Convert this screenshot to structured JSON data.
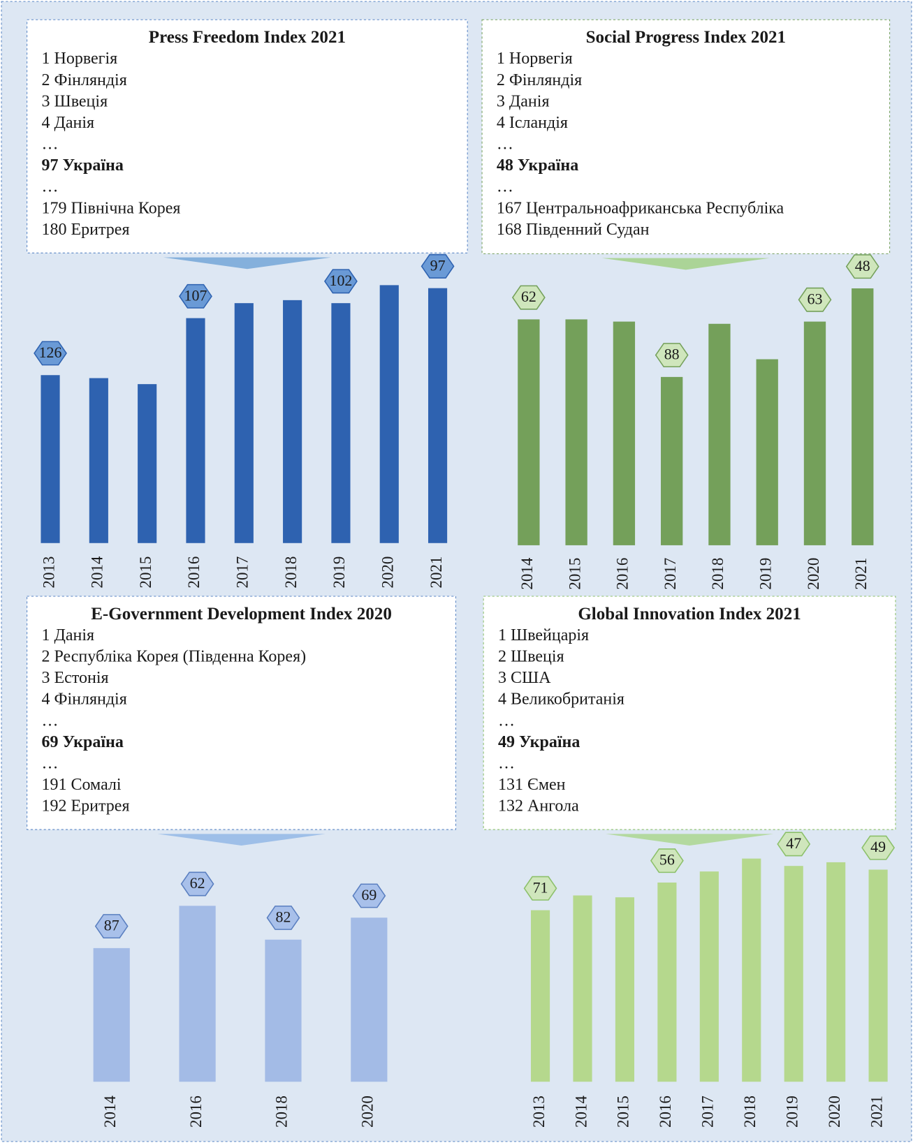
{
  "chart_data": [
    {
      "type": "bar",
      "title": "Press Freedom Index 2021",
      "ranking": [
        {
          "text": "1 Норвегія"
        },
        {
          "text": "2 Фінляндія"
        },
        {
          "text": "3 Швеція"
        },
        {
          "text": "4 Данія"
        },
        {
          "text": "…"
        },
        {
          "text": "97 Україна",
          "bold": true
        },
        {
          "text": "…"
        },
        {
          "text": "179 Північна Корея"
        },
        {
          "text": "180 Еритрея"
        }
      ],
      "categories": [
        "2013",
        "2014",
        "2015",
        "2016",
        "2017",
        "2018",
        "2019",
        "2020",
        "2021"
      ],
      "values": [
        126,
        127,
        129,
        107,
        102,
        101,
        102,
        96,
        97
      ],
      "value_labels": [
        "126",
        null,
        null,
        "107",
        null,
        null,
        "102",
        null,
        "97"
      ],
      "color": "#2e62b0",
      "ylim": [
        182,
        86
      ]
    },
    {
      "type": "bar",
      "title": "Social Progress Index 2021",
      "ranking": [
        {
          "text": "1  Норвегія"
        },
        {
          "text": "2 Фінляндія"
        },
        {
          "text": "3 Данія"
        },
        {
          "text": "4 Ісландія"
        },
        {
          "text": "…"
        },
        {
          "text": "48 Україна",
          "bold": true
        },
        {
          "text": "…"
        },
        {
          "text": "167 Центральноафриканська Республіка"
        },
        {
          "text": "168 Південний Судан"
        }
      ],
      "categories": [
        "2014",
        "2015",
        "2016",
        "2017",
        "2018",
        "2019",
        "2020",
        "2021"
      ],
      "values": [
        62,
        62,
        63,
        88,
        64,
        80,
        63,
        48
      ],
      "value_labels": [
        "62",
        null,
        null,
        "88",
        null,
        null,
        "63",
        "48"
      ],
      "color": "#74a05a",
      "ylim": [
        164,
        33
      ]
    },
    {
      "type": "bar",
      "title": "E-Government Development Index 2020",
      "ranking": [
        {
          "text": "1 Данія"
        },
        {
          "text": "2 Республіка Корея (Південна Корея)"
        },
        {
          "text": "3 Естонія"
        },
        {
          "text": "4 Фінляндія"
        },
        {
          "text": "…"
        },
        {
          "text": "69 Україна",
          "bold": true
        },
        {
          "text": "…"
        },
        {
          "text": "191 Сомалі"
        },
        {
          "text": "192 Еритрея"
        }
      ],
      "categories": [
        "2014",
        "2016",
        "2018",
        "2020"
      ],
      "values": [
        87,
        62,
        82,
        69
      ],
      "value_labels": [
        "87",
        "62",
        "82",
        "69"
      ],
      "color": "#a3bbe6",
      "ylim": [
        166,
        35
      ]
    },
    {
      "type": "bar",
      "title": "Global Innovation Index 2021",
      "ranking": [
        {
          "text": "1 Швейцарія"
        },
        {
          "text": "2 Швеція"
        },
        {
          "text": "3 США"
        },
        {
          "text": "4 Великобританія"
        },
        {
          "text": "…"
        },
        {
          "text": "49 Україна",
          "bold": true
        },
        {
          "text": "…"
        },
        {
          "text": "131  Ємен"
        },
        {
          "text": "132  Ангола"
        }
      ],
      "categories": [
        "2013",
        "2014",
        "2015",
        "2016",
        "2017",
        "2018",
        "2019",
        "2020",
        "2021"
      ],
      "values": [
        71,
        63,
        64,
        56,
        50,
        43,
        47,
        45,
        49
      ],
      "value_labels": [
        "71",
        null,
        null,
        "56",
        null,
        null,
        "47",
        null,
        "49"
      ],
      "color": "#b5d88d",
      "ylim": [
        164,
        32
      ]
    }
  ]
}
